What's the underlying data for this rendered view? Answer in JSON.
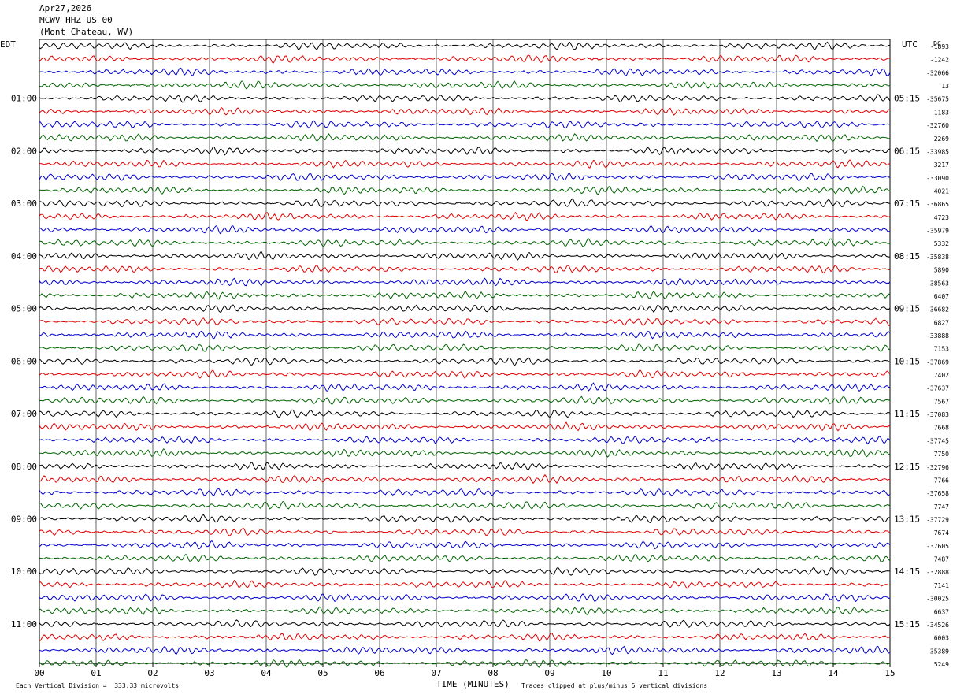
{
  "header": {
    "date": "Apr27,2026",
    "station": "MCWV HHZ US 00",
    "location": "(Mont Chateau, WV)"
  },
  "left_axis_label": "EDT",
  "right_axis_label": "UTC",
  "dc_label": "DC",
  "chart_data": {
    "type": "line",
    "title": "",
    "xlabel": "TIME (MINUTES)",
    "xlim": [
      0,
      15
    ],
    "x_ticks": [
      "00",
      "01",
      "02",
      "03",
      "04",
      "05",
      "06",
      "07",
      "08",
      "09",
      "10",
      "11",
      "12",
      "13",
      "14",
      "15"
    ],
    "row_minutes": 15,
    "row_colors": [
      "#000000",
      "#e00000",
      "#0000cc",
      "#006400"
    ],
    "left_hour_labels": [
      "01:00",
      "02:00",
      "03:00",
      "04:00",
      "05:00",
      "06:00",
      "07:00",
      "08:00",
      "09:00",
      "10:00",
      "11:00"
    ],
    "right_hour_labels": [
      "05:15",
      "06:15",
      "07:15",
      "08:15",
      "09:15",
      "10:15",
      "11:15",
      "12:15",
      "13:15",
      "14:15",
      "15:15"
    ],
    "dc_offsets": [
      "-1893",
      "-1242",
      "-32066",
      "13",
      "-35675",
      "1183",
      "-32760",
      "2269",
      "-33985",
      "3217",
      "-33090",
      "4021",
      "-36865",
      "4723",
      "-35979",
      "5332",
      "-35838",
      "5890",
      "-38563",
      "6407",
      "-36682",
      "6827",
      "-33888",
      "7153",
      "-37869",
      "7402",
      "-37637",
      "7567",
      "-37083",
      "7668",
      "-37745",
      "7750",
      "-32796",
      "7766",
      "-37658",
      "7747",
      "-37729",
      "7674",
      "-37605",
      "7487",
      "-32888",
      "7141",
      "-30025",
      "6637",
      "-34526",
      "6003",
      "-35389",
      "5249"
    ]
  },
  "footer": {
    "vertical_division": "Each Vertical Division =  333.33 microvolts",
    "clip_note": "Traces clipped at plus/minus 5 vertical divisions"
  }
}
